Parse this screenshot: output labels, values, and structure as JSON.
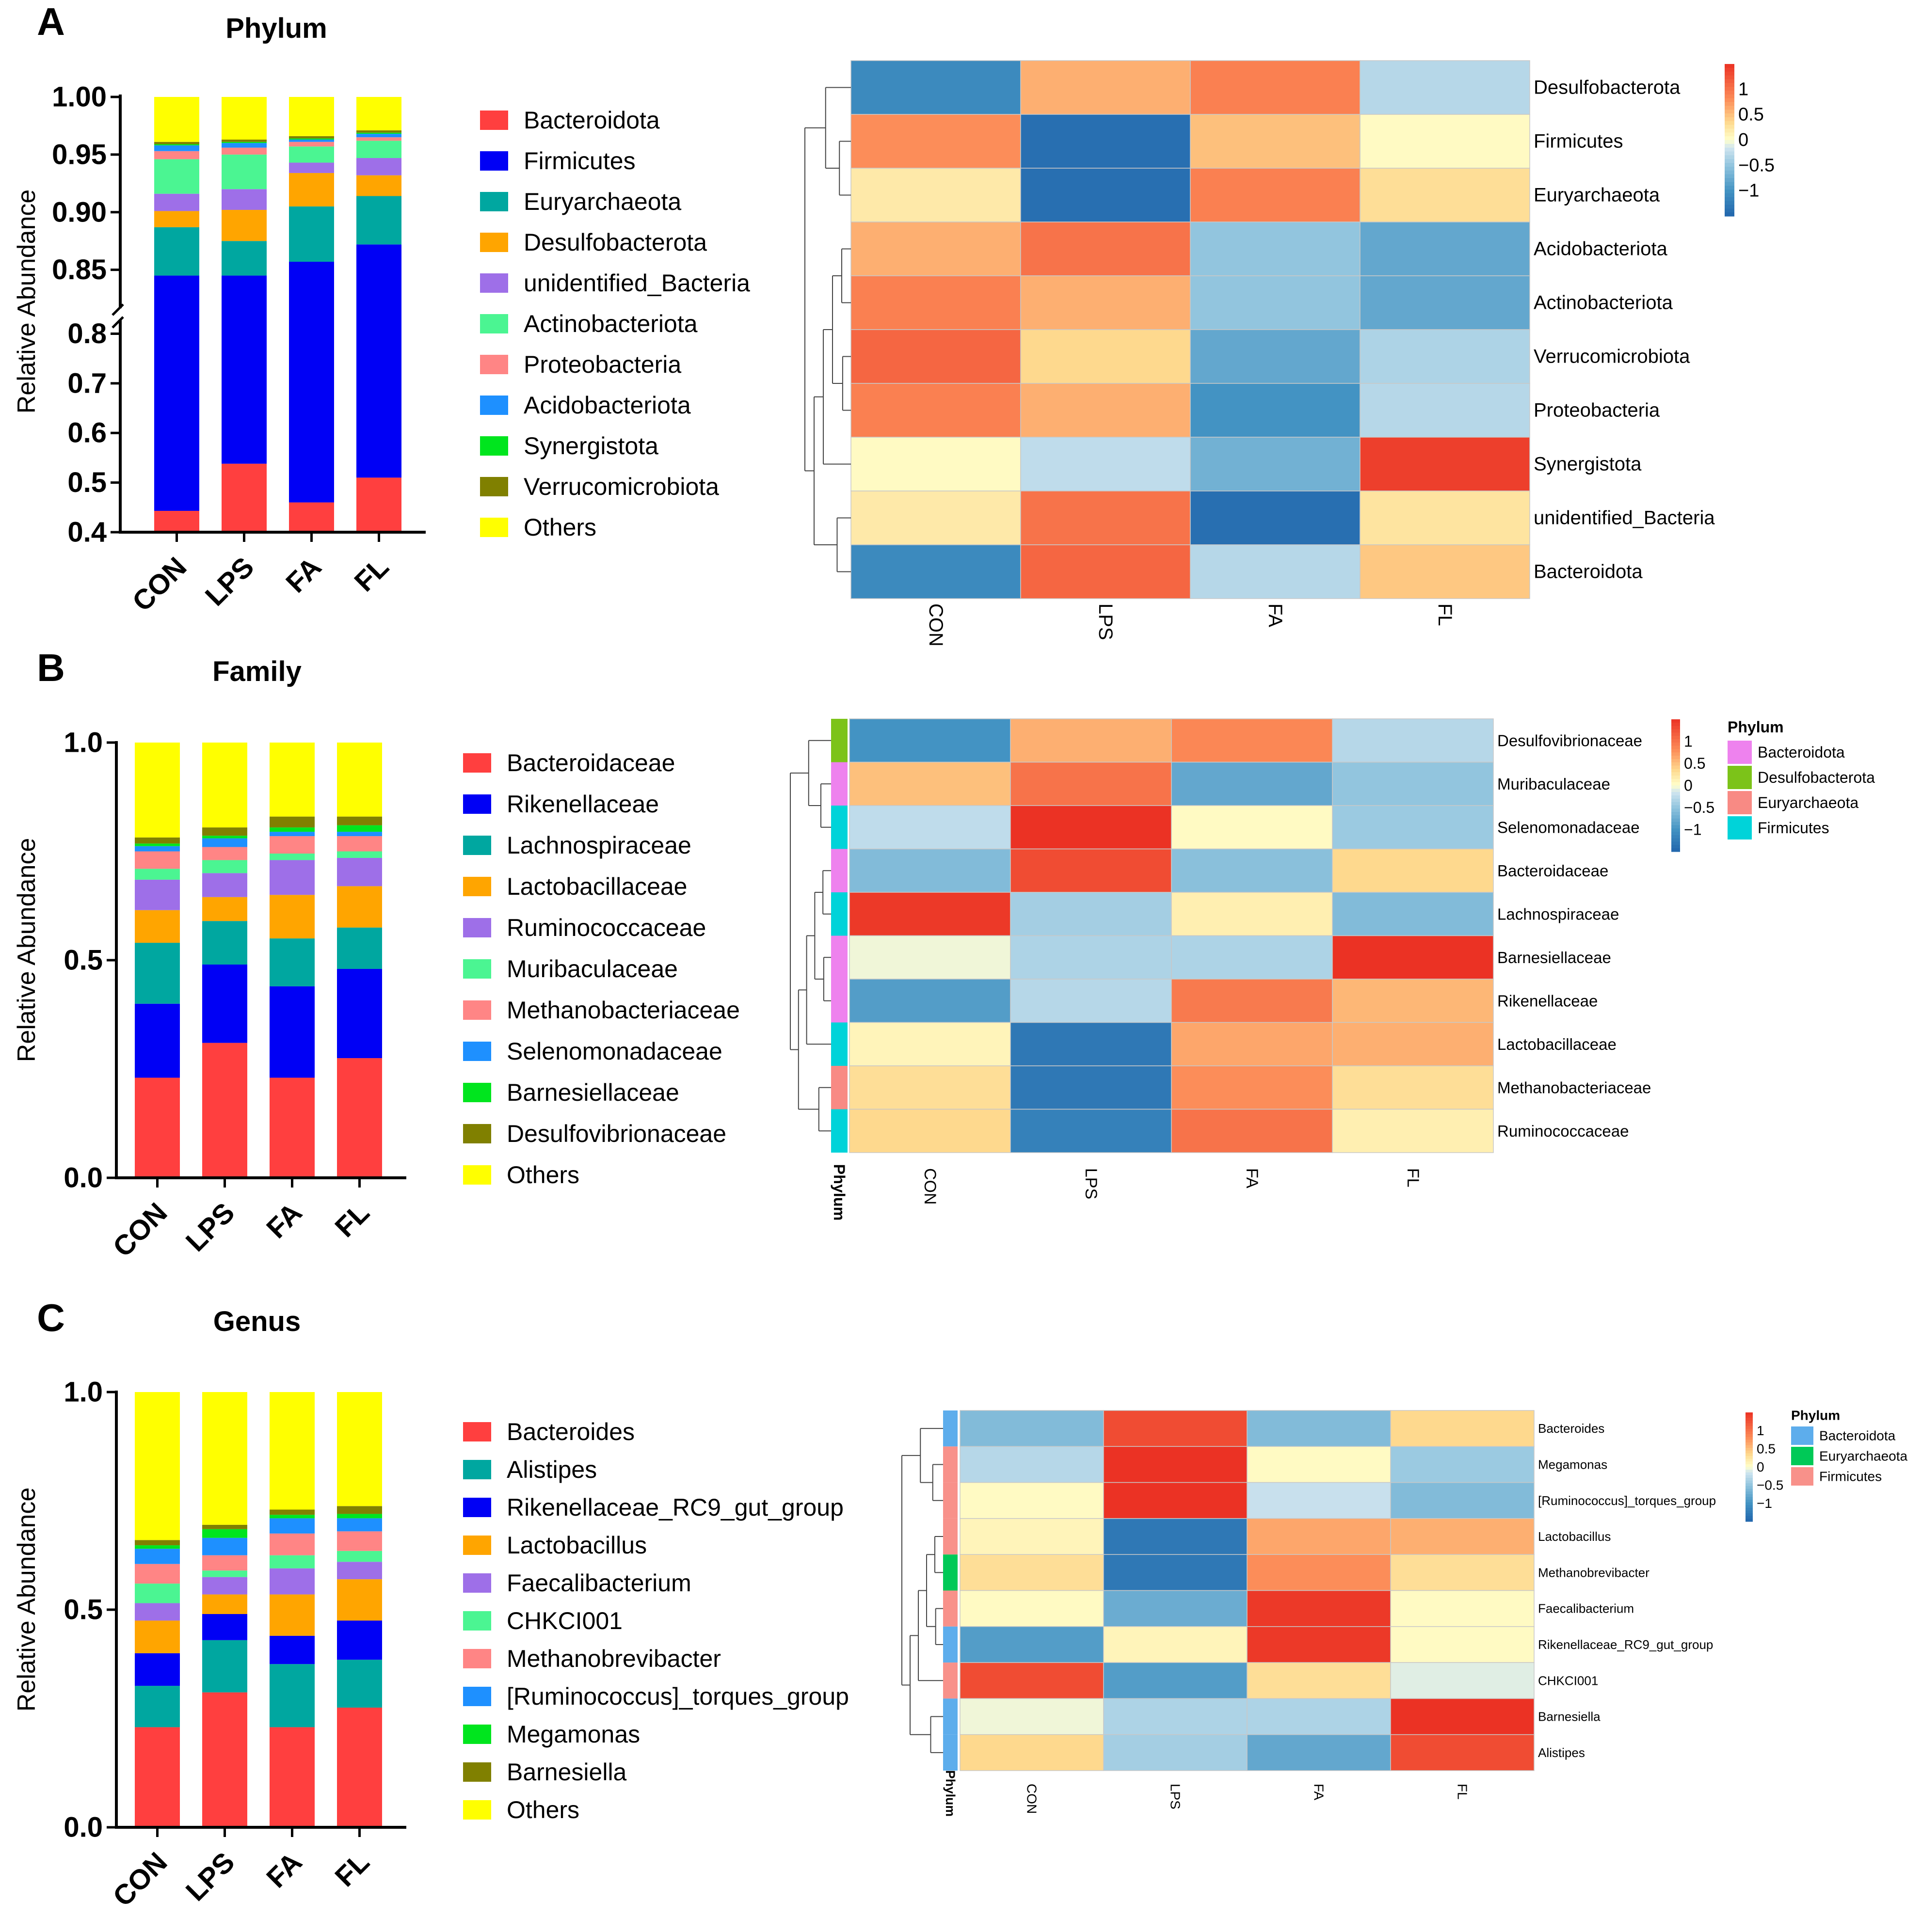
{
  "chart_data": [
    {
      "panel_letter": "A",
      "type": "bar",
      "stacked": true,
      "title": "Phylum",
      "ylabel": "Relative Abundance",
      "broken_axis": true,
      "ylim_lower": [
        0.4,
        0.82
      ],
      "ylim_upper": [
        0.82,
        1.0
      ],
      "yticks_lower": [
        "0.4",
        "0.5",
        "0.6",
        "0.7",
        "0.8"
      ],
      "yticks_upper": [
        "0.85",
        "0.90",
        "0.95",
        "1.00"
      ],
      "categories": [
        "CON",
        "LPS",
        "FA",
        "FL"
      ],
      "series": [
        {
          "name": "Bacteroidota",
          "color": "#FF3F3F",
          "cumulative": [
            0.443,
            0.538,
            0.46,
            0.51
          ]
        },
        {
          "name": "Firmicutes",
          "color": "#0000F5",
          "cumulative": [
            0.845,
            0.845,
            0.857,
            0.872
          ]
        },
        {
          "name": "Euryarchaeota",
          "color": "#00A7A0",
          "cumulative": [
            0.887,
            0.875,
            0.905,
            0.914
          ]
        },
        {
          "name": "Desulfobacterota",
          "color": "#FFA500",
          "cumulative": [
            0.901,
            0.902,
            0.934,
            0.932
          ]
        },
        {
          "name": "unidentified_Bacteria",
          "color": "#9E6FE8",
          "cumulative": [
            0.916,
            0.92,
            0.943,
            0.947
          ]
        },
        {
          "name": "Actinobacteriota",
          "color": "#4BF592",
          "cumulative": [
            0.946,
            0.95,
            0.957,
            0.962
          ]
        },
        {
          "name": "Proteobacteria",
          "color": "#FF8585",
          "cumulative": [
            0.953,
            0.956,
            0.961,
            0.965
          ]
        },
        {
          "name": "Acidobacteriota",
          "color": "#1E90FF",
          "cumulative": [
            0.958,
            0.96,
            0.963,
            0.968
          ]
        },
        {
          "name": "Synergistota",
          "color": "#00E51E",
          "cumulative": [
            0.959,
            0.961,
            0.964,
            0.969
          ]
        },
        {
          "name": "Verrucomicrobiota",
          "color": "#808000",
          "cumulative": [
            0.961,
            0.963,
            0.966,
            0.971
          ]
        },
        {
          "name": "Others",
          "color": "#FFFF00",
          "cumulative": [
            1.0,
            1.0,
            1.0,
            1.0
          ]
        }
      ],
      "heatmap": {
        "columns": [
          "CON",
          "LPS",
          "FA",
          "FL"
        ],
        "rows": [
          "Desulfobacterota",
          "Firmicutes",
          "Euryarchaeota",
          "Acidobacteriota",
          "Actinobacteriota",
          "Verrucomicrobiota",
          "Proteobacteria",
          "Synergistota",
          "unidentified_Bacteria",
          "Bacteroidota"
        ],
        "values": [
          [
            -1.1,
            0.6,
            0.9,
            -0.3
          ],
          [
            0.8,
            -1.4,
            0.5,
            0.05
          ],
          [
            0.2,
            -1.4,
            0.9,
            0.3
          ],
          [
            0.6,
            1.0,
            -0.5,
            -0.8
          ],
          [
            0.9,
            0.6,
            -0.5,
            -0.8
          ],
          [
            1.1,
            0.35,
            -0.8,
            -0.35
          ],
          [
            0.9,
            0.6,
            -1.0,
            -0.3
          ],
          [
            0.05,
            -0.25,
            -0.7,
            1.4
          ],
          [
            0.2,
            1.0,
            -1.4,
            0.25
          ],
          [
            -1.1,
            1.1,
            -0.3,
            0.45
          ]
        ],
        "legend_ticks": [
          "1",
          "0.5",
          "0",
          "−0.5",
          "−1"
        ],
        "dendrogram": true
      }
    },
    {
      "panel_letter": "B",
      "type": "bar",
      "stacked": true,
      "title": "Family",
      "ylabel": "Relative Abundance",
      "ylim": [
        0,
        1.0
      ],
      "yticks": [
        "0.0",
        "0.5",
        "1.0"
      ],
      "categories": [
        "CON",
        "LPS",
        "FA",
        "FL"
      ],
      "series": [
        {
          "name": "Bacteroidaceae",
          "color": "#FF3F3F",
          "cumulative": [
            0.23,
            0.31,
            0.23,
            0.275
          ]
        },
        {
          "name": "Rikenellaceae",
          "color": "#0000F5",
          "cumulative": [
            0.4,
            0.49,
            0.44,
            0.48
          ]
        },
        {
          "name": "Lachnospiraceae",
          "color": "#00A7A0",
          "cumulative": [
            0.54,
            0.59,
            0.55,
            0.575
          ]
        },
        {
          "name": "Lactobacillaceae",
          "color": "#FFA500",
          "cumulative": [
            0.615,
            0.645,
            0.65,
            0.67
          ]
        },
        {
          "name": "Ruminococcaceae",
          "color": "#9E6FE8",
          "cumulative": [
            0.685,
            0.7,
            0.73,
            0.735
          ]
        },
        {
          "name": "Muribaculaceae",
          "color": "#4BF592",
          "cumulative": [
            0.71,
            0.73,
            0.745,
            0.75
          ]
        },
        {
          "name": "Methanobacteriaceae",
          "color": "#FF8585",
          "cumulative": [
            0.75,
            0.76,
            0.785,
            0.785
          ]
        },
        {
          "name": "Selenomonadaceae",
          "color": "#1E90FF",
          "cumulative": [
            0.762,
            0.78,
            0.795,
            0.795
          ]
        },
        {
          "name": "Barnesiellaceae",
          "color": "#00E51E",
          "cumulative": [
            0.768,
            0.786,
            0.805,
            0.81
          ]
        },
        {
          "name": "Desulfovibrionaceae",
          "color": "#808000",
          "cumulative": [
            0.782,
            0.805,
            0.83,
            0.83
          ]
        },
        {
          "name": "Others",
          "color": "#FFFF00",
          "cumulative": [
            1.0,
            1.0,
            1.0,
            1.0
          ]
        }
      ],
      "heatmap": {
        "columns": [
          "CON",
          "LPS",
          "FA",
          "FL"
        ],
        "rows": [
          "Desulfovibrionaceae",
          "Muribaculaceae",
          "Selenomonadaceae",
          "Bacteroidaceae",
          "Lachnospiraceae",
          "Barnesiellaceae",
          "Rikenellaceae",
          "Lactobacillaceae",
          "Methanobacteriaceae",
          "Ruminococcaceae"
        ],
        "values": [
          [
            -1.0,
            0.6,
            0.85,
            -0.3
          ],
          [
            0.5,
            1.0,
            -0.8,
            -0.5
          ],
          [
            -0.25,
            1.5,
            0.05,
            -0.45
          ],
          [
            -0.6,
            1.3,
            -0.55,
            0.35
          ],
          [
            1.45,
            -0.4,
            0.15,
            -0.6
          ],
          [
            -0.05,
            -0.35,
            -0.35,
            1.5
          ],
          [
            -0.9,
            -0.3,
            0.95,
            0.55
          ],
          [
            0.1,
            -1.3,
            0.65,
            0.6
          ],
          [
            0.3,
            -1.3,
            0.8,
            0.3
          ],
          [
            0.35,
            -1.2,
            1.0,
            0.15
          ]
        ],
        "annotation_phylum": [
          "Desulfobacterota",
          "Bacteroidota",
          "Firmicutes",
          "Bacteroidota",
          "Firmicutes",
          "Bacteroidota",
          "Bacteroidota",
          "Firmicutes",
          "Euryarchaeota",
          "Firmicutes"
        ],
        "annotation_label": "Phylum",
        "annotation_legend_title": "Phylum",
        "annotation_legend": [
          {
            "name": "Bacteroidota",
            "color": "#EE82EE"
          },
          {
            "name": "Desulfobacterota",
            "color": "#7CC319"
          },
          {
            "name": "Euryarchaeota",
            "color": "#F88A84"
          },
          {
            "name": "Firmicutes",
            "color": "#00D3D9"
          }
        ],
        "legend_ticks": [
          "1",
          "0.5",
          "0",
          "−0.5",
          "−1"
        ],
        "dendrogram": true
      }
    },
    {
      "panel_letter": "C",
      "type": "bar",
      "stacked": true,
      "title": "Genus",
      "ylabel": "Relative Abundance",
      "ylim": [
        0,
        1.0
      ],
      "yticks": [
        "0.0",
        "0.5",
        "1.0"
      ],
      "categories": [
        "CON",
        "LPS",
        "FA",
        "FL"
      ],
      "series": [
        {
          "name": "Bacteroides",
          "color": "#FF3F3F",
          "cumulative": [
            0.23,
            0.31,
            0.23,
            0.275
          ]
        },
        {
          "name": "Alistipes",
          "color": "#00A7A0",
          "cumulative": [
            0.325,
            0.43,
            0.375,
            0.385
          ]
        },
        {
          "name": "Rikenellaceae_RC9_gut_group",
          "color": "#0000F5",
          "cumulative": [
            0.4,
            0.49,
            0.44,
            0.475
          ]
        },
        {
          "name": "Lactobacillus",
          "color": "#FFA500",
          "cumulative": [
            0.475,
            0.535,
            0.535,
            0.57
          ]
        },
        {
          "name": "Faecalibacterium",
          "color": "#9E6FE8",
          "cumulative": [
            0.515,
            0.575,
            0.595,
            0.61
          ]
        },
        {
          "name": "CHKCI001",
          "color": "#4BF592",
          "cumulative": [
            0.56,
            0.59,
            0.625,
            0.635
          ]
        },
        {
          "name": "Methanobrevibacter",
          "color": "#FF8585",
          "cumulative": [
            0.605,
            0.625,
            0.675,
            0.68
          ]
        },
        {
          "name": "[Ruminococcus]_torques_group",
          "color": "#1E90FF",
          "cumulative": [
            0.64,
            0.665,
            0.71,
            0.71
          ]
        },
        {
          "name": "Megamonas",
          "color": "#00E51E",
          "cumulative": [
            0.648,
            0.685,
            0.718,
            0.72
          ]
        },
        {
          "name": "Barnesiella",
          "color": "#808000",
          "cumulative": [
            0.66,
            0.695,
            0.73,
            0.738
          ]
        },
        {
          "name": "Others",
          "color": "#FFFF00",
          "cumulative": [
            1.0,
            1.0,
            1.0,
            1.0
          ]
        }
      ],
      "heatmap": {
        "columns": [
          "CON",
          "LPS",
          "FA",
          "FL"
        ],
        "rows": [
          "Bacteroides",
          "Megamonas",
          "[Ruminococcus]_torques_group",
          "Lactobacillus",
          "Methanobrevibacter",
          "Faecalibacterium",
          "Rikenellaceae_RC9_gut_group",
          "CHKCI001",
          "Barnesiella",
          "Alistipes"
        ],
        "values": [
          [
            -0.6,
            1.3,
            -0.6,
            0.35
          ],
          [
            -0.3,
            1.5,
            0.05,
            -0.45
          ],
          [
            0.05,
            1.5,
            -0.2,
            -0.6
          ],
          [
            0.1,
            -1.3,
            0.65,
            0.6
          ],
          [
            0.3,
            -1.3,
            0.8,
            0.3
          ],
          [
            0.05,
            -0.75,
            1.45,
            0.05
          ],
          [
            -0.9,
            0.1,
            1.45,
            0.05
          ],
          [
            1.3,
            -0.9,
            0.3,
            -0.1
          ],
          [
            -0.05,
            -0.35,
            -0.35,
            1.5
          ],
          [
            0.35,
            -0.4,
            -0.8,
            1.3
          ]
        ],
        "annotation_phylum": [
          "Bacteroidota",
          "Firmicutes",
          "Firmicutes",
          "Firmicutes",
          "Euryarchaeota",
          "Firmicutes",
          "Bacteroidota",
          "Firmicutes",
          "Bacteroidota",
          "Bacteroidota"
        ],
        "annotation_label": "Phylum",
        "annotation_legend_title": "Phylum",
        "annotation_legend": [
          {
            "name": "Bacteroidota",
            "color": "#5DADEC"
          },
          {
            "name": "Euryarchaeota",
            "color": "#00C957"
          },
          {
            "name": "Firmicutes",
            "color": "#F8918A"
          }
        ],
        "legend_ticks": [
          "1",
          "0.5",
          "0",
          "−0.5",
          "−1"
        ],
        "dendrogram": true
      }
    }
  ]
}
